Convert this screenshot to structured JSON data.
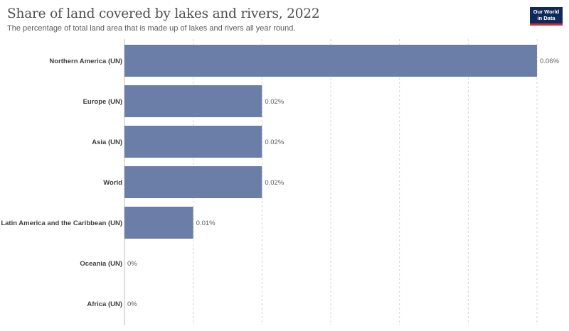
{
  "header": {
    "title": "Share of land covered by lakes and rivers, 2022",
    "subtitle": "The percentage of total land area that is made up of lakes and rivers all year round."
  },
  "logo": {
    "line1": "Our World",
    "line2": "in Data"
  },
  "colors": {
    "bar": "#6a7ea7",
    "grid": "#d6d6d6",
    "logo_bg": "#0f2a5a",
    "logo_accent": "#d42b2b"
  },
  "chart_data": {
    "type": "bar",
    "orientation": "horizontal",
    "categories": [
      "Northern America (UN)",
      "Europe (UN)",
      "Asia (UN)",
      "World",
      "Latin America and the Caribbean (UN)",
      "Oceania (UN)",
      "Africa (UN)"
    ],
    "values": [
      0.06,
      0.02,
      0.02,
      0.02,
      0.01,
      0,
      0
    ],
    "labels": [
      "0.06%",
      "0.02%",
      "0.02%",
      "0.02%",
      "0.01%",
      "0%",
      "0%"
    ],
    "unit": "%",
    "xlim": [
      0,
      0.06
    ],
    "grid": true
  }
}
